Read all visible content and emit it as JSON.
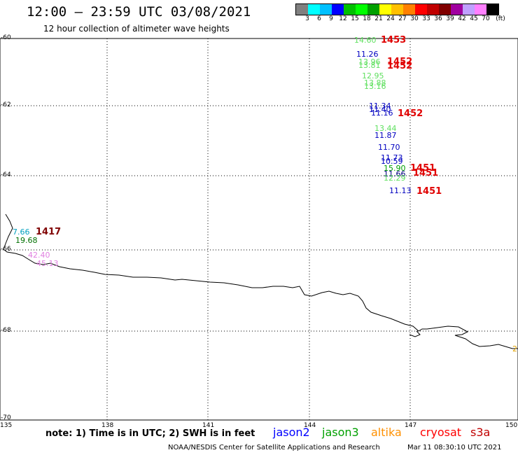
{
  "header": {
    "title": "12:00 – 23:59 UTC 03/08/2021",
    "subtitle": "12 hour collection of altimeter wave heights"
  },
  "legend": {
    "colors": [
      "#808080",
      "#00ffff",
      "#00c0ff",
      "#0000ff",
      "#00c000",
      "#00ff00",
      "#00a000",
      "#ffff00",
      "#ffc000",
      "#ff8000",
      "#ff0000",
      "#c00000",
      "#800000",
      "#a000a0",
      "#c0a0ff",
      "#ff80ff",
      "#000000"
    ],
    "labels": [
      "3",
      "6",
      "9",
      "12",
      "15",
      "18",
      "21",
      "24",
      "27",
      "30",
      "33",
      "36",
      "39",
      "42",
      "45",
      "70",
      "(ft)"
    ]
  },
  "axes": {
    "lat_labels": [
      "-60",
      "-62",
      "-64",
      "-66",
      "-68",
      "-70"
    ],
    "lon_labels": [
      "135",
      "138",
      "141",
      "144",
      "147",
      "150"
    ]
  },
  "observations": [
    {
      "text": "14.60",
      "color": "#60e060"
    },
    {
      "text": "11.26",
      "color": "#0000c0"
    },
    {
      "text": "13.96",
      "color": "#60e060"
    },
    {
      "text": "13.81",
      "color": "#60e060"
    },
    {
      "text": "12.95",
      "color": "#60e060"
    },
    {
      "text": "13.88",
      "color": "#60e060"
    },
    {
      "text": "13.16",
      "color": "#60e060"
    },
    {
      "text": "11.34",
      "color": "#0000c0"
    },
    {
      "text": "11.40",
      "color": "#0000c0"
    },
    {
      "text": "11.16",
      "color": "#0000c0"
    },
    {
      "text": "13.44",
      "color": "#60e060"
    },
    {
      "text": "11.87",
      "color": "#0000c0"
    },
    {
      "text": "11.70",
      "color": "#0000c0"
    },
    {
      "text": "11.73",
      "color": "#0000c0"
    },
    {
      "text": "10.59",
      "color": "#0000c0"
    },
    {
      "text": "15.90",
      "color": "#00a000"
    },
    {
      "text": "11.66",
      "color": "#000080"
    },
    {
      "text": "12.29",
      "color": "#60e060"
    },
    {
      "text": "11.13",
      "color": "#0000c0"
    },
    {
      "text": "7.66",
      "color": "#00a0c0"
    },
    {
      "text": "19.68",
      "color": "#007000"
    },
    {
      "text": "42.40",
      "color": "#e080e0"
    },
    {
      "text": "45.13",
      "color": "#e080e0"
    },
    {
      "text": "2",
      "color": "#e0a000"
    }
  ],
  "pass_times": [
    {
      "text": "1453",
      "color": "#e00000"
    },
    {
      "text": "1452",
      "color": "#e00000"
    },
    {
      "text": "1452",
      "color": "#e00000"
    },
    {
      "text": "1452",
      "color": "#e00000"
    },
    {
      "text": "1451",
      "color": "#e00000"
    },
    {
      "text": "1451",
      "color": "#e00000"
    },
    {
      "text": "1451",
      "color": "#e00000"
    },
    {
      "text": "1417",
      "color": "#800000"
    }
  ],
  "footer": {
    "note": "note: 1) Time is in UTC; 2) SWH is in feet",
    "satellites": [
      {
        "name": "jason2",
        "color": "#0000ff"
      },
      {
        "name": "jason3",
        "color": "#00a000"
      },
      {
        "name": "altika",
        "color": "#ff9000"
      },
      {
        "name": "cryosat",
        "color": "#ff0000"
      },
      {
        "name": "s3a",
        "color": "#c00000"
      }
    ],
    "credit": "NOAA/NESDIS Center for Satellite Applications and Research",
    "timestamp": "Mar 11 08:30:10 UTC 2021"
  }
}
